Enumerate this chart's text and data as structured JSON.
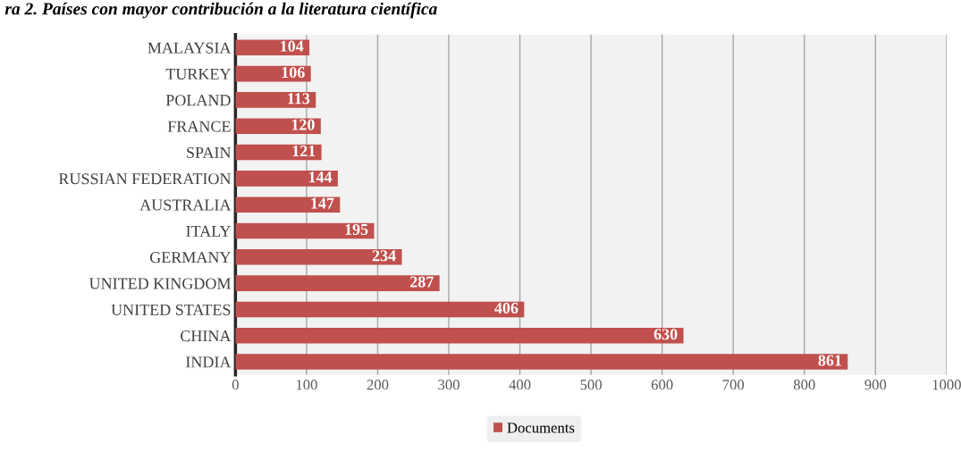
{
  "chart_data": {
    "type": "bar",
    "orientation": "horizontal",
    "title": "ra 2. Países con mayor contribución a la literatura científica",
    "categories": [
      "MALAYSIA",
      "TURKEY",
      "POLAND",
      "FRANCE",
      "SPAIN",
      "RUSSIAN FEDERATION",
      "AUSTRALIA",
      "ITALY",
      "GERMANY",
      "UNITED KINGDOM",
      "UNITED STATES",
      "CHINA",
      "INDIA"
    ],
    "series": [
      {
        "name": "Documents",
        "color": "#c0504d",
        "values": [
          104,
          106,
          113,
          120,
          121,
          144,
          147,
          195,
          234,
          287,
          406,
          630,
          861
        ]
      }
    ],
    "xlim": [
      0,
      1000
    ],
    "xticks": [
      0,
      100,
      200,
      300,
      400,
      500,
      600,
      700,
      800,
      900,
      1000
    ],
    "grid": "x",
    "legend": "bottom",
    "data_labels": true
  }
}
